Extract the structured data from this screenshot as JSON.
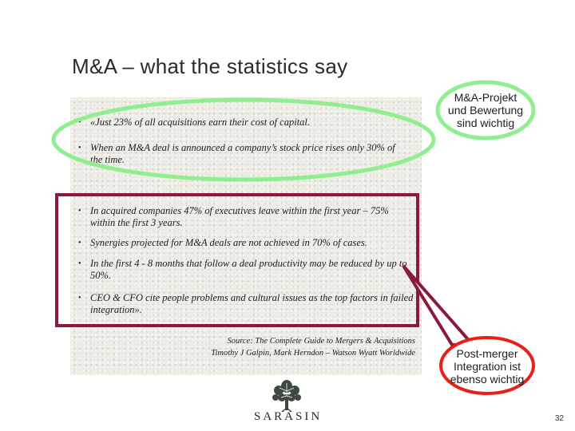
{
  "slide": {
    "title": "M&A – what the statistics say",
    "page_number": "32"
  },
  "bullets": [
    {
      "marker": "•",
      "text": "«Just 23% of all acquisitions earn their cost of capital."
    },
    {
      "marker": "•",
      "text": "When an M&A deal is announced a company’s stock price rises only 30% of the time."
    },
    {
      "marker": "•",
      "text": "In acquired companies 47% of executives leave within the first year – 75% within the first 3 years."
    },
    {
      "marker": "•",
      "text": "Synergies projected for M&A deals are not achieved in 70% of cases."
    },
    {
      "marker": "•",
      "text": "In the first 4 - 8 months that follow a deal productivity may be reduced by up to 50%."
    },
    {
      "marker": "•",
      "text": "CEO & CFO cite people problems and cultural issues as the top factors in failed integration»."
    }
  ],
  "source": {
    "line1": "Source: The Complete Guide to Mergers & Acquisitions",
    "line2": "Timothy J Galpin, Mark Herndon – Watson Wyatt Worldwide"
  },
  "callouts": {
    "green": {
      "line1": "M&A-Projekt",
      "line2": "und Bewertung",
      "line3": "sind wichtig"
    },
    "red": {
      "line1": "Post-merger",
      "line2": "Integration ist",
      "line3": "ebenso wichtig"
    }
  },
  "logo": {
    "text": "SARASIN",
    "icon": "tree-icon"
  },
  "colors": {
    "green_outline": "#90ee90",
    "maroon_box": "#8b1a3a",
    "panel_bg": "#ecebe4"
  }
}
